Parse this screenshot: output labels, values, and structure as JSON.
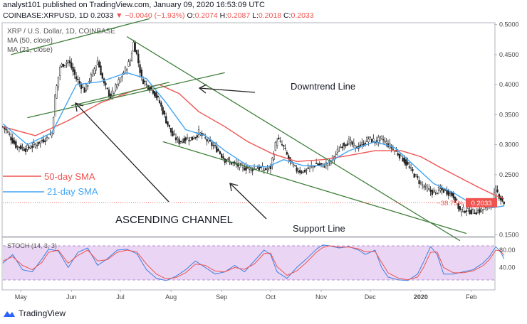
{
  "header": {
    "published_line": "analyst101 published on TradingView.com, January 09, 2020 16:53:09 UTC",
    "symbol": "COINBASE:XRPUSD, 1D",
    "last": "0.2033",
    "change": "▼ −0.0040 (−1.93%)",
    "o_label": "O:",
    "o": "0.2074",
    "h_label": "H:",
    "h": "0.2087",
    "l_label": "L:",
    "l": "0.2018",
    "c_label": "C:",
    "c": "0.2033"
  },
  "colors": {
    "ma50": "#ef5350",
    "ma21": "#42a5f5",
    "trend": "#3f7f3a",
    "candle": "#222222",
    "stoch_k": "#3d7ee0",
    "stoch_d": "#ef5350",
    "stoch_bg": "#e3c9f0",
    "price_tag": "#ef5350"
  },
  "chart_data": {
    "type": "candlestick",
    "legend": {
      "title": "XRP / U.S. Dollar, 1D, COINBASE",
      "ma50": "MA (50, close)",
      "ma21": "MA (21, close)"
    },
    "y_ticks": [
      "0.5000",
      "0.4500",
      "0.4000",
      "0.3500",
      "0.3000",
      "0.2500",
      "0.1500"
    ],
    "x_ticks": [
      "May",
      "Jun",
      "Jul",
      "Aug",
      "Sep",
      "Oct",
      "Nov",
      "Dec",
      "2020",
      "Feb"
    ],
    "current_price": "0.2033",
    "pct_change": "−38.75%",
    "x_range": [
      "2019-04-20",
      "2020-02-15"
    ],
    "y_range": [
      0.148,
      0.502
    ],
    "price_series": [
      [
        0,
        0.33
      ],
      [
        3,
        0.32
      ],
      [
        8,
        0.298
      ],
      [
        14,
        0.293
      ],
      [
        20,
        0.3
      ],
      [
        26,
        0.31
      ],
      [
        30,
        0.32
      ],
      [
        32,
        0.38
      ],
      [
        35,
        0.43
      ],
      [
        40,
        0.44
      ],
      [
        45,
        0.41
      ],
      [
        50,
        0.39
      ],
      [
        55,
        0.42
      ],
      [
        58,
        0.44
      ],
      [
        62,
        0.4
      ],
      [
        66,
        0.38
      ],
      [
        70,
        0.4
      ],
      [
        74,
        0.42
      ],
      [
        78,
        0.44
      ],
      [
        80,
        0.47
      ],
      [
        82,
        0.45
      ],
      [
        85,
        0.41
      ],
      [
        88,
        0.4
      ],
      [
        92,
        0.39
      ],
      [
        96,
        0.37
      ],
      [
        100,
        0.34
      ],
      [
        104,
        0.315
      ],
      [
        108,
        0.305
      ],
      [
        112,
        0.31
      ],
      [
        116,
        0.31
      ],
      [
        120,
        0.32
      ],
      [
        124,
        0.31
      ],
      [
        128,
        0.3
      ],
      [
        132,
        0.29
      ],
      [
        136,
        0.275
      ],
      [
        140,
        0.27
      ],
      [
        144,
        0.265
      ],
      [
        148,
        0.262
      ],
      [
        152,
        0.26
      ],
      [
        156,
        0.262
      ],
      [
        160,
        0.258
      ],
      [
        164,
        0.262
      ],
      [
        166,
        0.29
      ],
      [
        168,
        0.31
      ],
      [
        172,
        0.295
      ],
      [
        176,
        0.27
      ],
      [
        180,
        0.258
      ],
      [
        184,
        0.255
      ],
      [
        188,
        0.262
      ],
      [
        192,
        0.268
      ],
      [
        196,
        0.265
      ],
      [
        200,
        0.27
      ],
      [
        204,
        0.285
      ],
      [
        208,
        0.3
      ],
      [
        212,
        0.305
      ],
      [
        216,
        0.295
      ],
      [
        220,
        0.3
      ],
      [
        224,
        0.31
      ],
      [
        228,
        0.305
      ],
      [
        232,
        0.31
      ],
      [
        236,
        0.3
      ],
      [
        240,
        0.29
      ],
      [
        244,
        0.28
      ],
      [
        248,
        0.265
      ],
      [
        252,
        0.25
      ],
      [
        256,
        0.235
      ],
      [
        260,
        0.225
      ],
      [
        264,
        0.22
      ],
      [
        268,
        0.225
      ],
      [
        272,
        0.222
      ],
      [
        276,
        0.215
      ],
      [
        280,
        0.19
      ],
      [
        284,
        0.192
      ],
      [
        288,
        0.188
      ],
      [
        292,
        0.19
      ],
      [
        296,
        0.195
      ],
      [
        300,
        0.205
      ],
      [
        302,
        0.225
      ],
      [
        305,
        0.21
      ],
      [
        307,
        0.2033
      ]
    ],
    "ma50_series": [
      [
        0,
        0.33
      ],
      [
        20,
        0.315
      ],
      [
        40,
        0.34
      ],
      [
        60,
        0.37
      ],
      [
        80,
        0.39
      ],
      [
        96,
        0.4
      ],
      [
        108,
        0.385
      ],
      [
        120,
        0.355
      ],
      [
        136,
        0.33
      ],
      [
        150,
        0.305
      ],
      [
        165,
        0.285
      ],
      [
        180,
        0.272
      ],
      [
        196,
        0.275
      ],
      [
        212,
        0.282
      ],
      [
        228,
        0.29
      ],
      [
        244,
        0.29
      ],
      [
        256,
        0.28
      ],
      [
        268,
        0.262
      ],
      [
        280,
        0.245
      ],
      [
        292,
        0.228
      ],
      [
        302,
        0.215
      ],
      [
        307,
        0.21
      ]
    ],
    "ma21_series": [
      [
        0,
        0.335
      ],
      [
        15,
        0.3
      ],
      [
        30,
        0.32
      ],
      [
        45,
        0.4
      ],
      [
        60,
        0.405
      ],
      [
        76,
        0.42
      ],
      [
        88,
        0.41
      ],
      [
        100,
        0.37
      ],
      [
        112,
        0.325
      ],
      [
        124,
        0.315
      ],
      [
        136,
        0.29
      ],
      [
        150,
        0.265
      ],
      [
        162,
        0.263
      ],
      [
        172,
        0.275
      ],
      [
        184,
        0.265
      ],
      [
        196,
        0.265
      ],
      [
        212,
        0.29
      ],
      [
        228,
        0.305
      ],
      [
        240,
        0.295
      ],
      [
        252,
        0.265
      ],
      [
        264,
        0.235
      ],
      [
        276,
        0.22
      ],
      [
        288,
        0.2
      ],
      [
        300,
        0.195
      ],
      [
        307,
        0.198
      ]
    ],
    "trend_lines": [
      {
        "name": "channel-upper",
        "x": [
          5,
          90
        ],
        "y": [
          0.45,
          0.51
        ]
      },
      {
        "name": "channel-lower",
        "x": [
          15,
          136
        ],
        "y": [
          0.345,
          0.42
        ]
      },
      {
        "name": "channel-mid",
        "x": [
          42,
          102
        ],
        "y": [
          0.365,
          0.404
        ]
      },
      {
        "name": "downtrend",
        "x": [
          76,
          280
        ],
        "y": [
          0.48,
          0.14
        ]
      },
      {
        "name": "support",
        "x": [
          98,
          284
        ],
        "y": [
          0.305,
          0.152
        ]
      }
    ],
    "annotations": [
      {
        "name": "downtrend-label",
        "text": "Downtrend Line"
      },
      {
        "name": "sma50-label",
        "text": "50-day SMA"
      },
      {
        "name": "sma21-label",
        "text": "21-day SMA"
      },
      {
        "name": "channel-label",
        "text": "ASCENDING CHANNEL"
      },
      {
        "name": "support-label",
        "text": "Support Line"
      }
    ],
    "stoch": {
      "title": "STOCH (14, 3, 3)",
      "y_ticks": [
        "80.00",
        "40.00"
      ],
      "overbought": 80,
      "oversold": 20,
      "k": [
        [
          0,
          50
        ],
        [
          6,
          70
        ],
        [
          12,
          35
        ],
        [
          18,
          30
        ],
        [
          24,
          60
        ],
        [
          28,
          82
        ],
        [
          34,
          78
        ],
        [
          40,
          40
        ],
        [
          46,
          75
        ],
        [
          52,
          85
        ],
        [
          58,
          45
        ],
        [
          64,
          60
        ],
        [
          70,
          80
        ],
        [
          76,
          82
        ],
        [
          82,
          72
        ],
        [
          88,
          35
        ],
        [
          94,
          15
        ],
        [
          100,
          10
        ],
        [
          106,
          20
        ],
        [
          112,
          35
        ],
        [
          118,
          55
        ],
        [
          124,
          40
        ],
        [
          130,
          25
        ],
        [
          136,
          30
        ],
        [
          142,
          45
        ],
        [
          148,
          30
        ],
        [
          154,
          55
        ],
        [
          160,
          80
        ],
        [
          164,
          70
        ],
        [
          168,
          30
        ],
        [
          174,
          15
        ],
        [
          180,
          40
        ],
        [
          186,
          60
        ],
        [
          192,
          82
        ],
        [
          196,
          92
        ],
        [
          200,
          90
        ],
        [
          206,
          85
        ],
        [
          212,
          88
        ],
        [
          218,
          80
        ],
        [
          222,
          70
        ],
        [
          228,
          80
        ],
        [
          232,
          40
        ],
        [
          236,
          18
        ],
        [
          242,
          12
        ],
        [
          248,
          10
        ],
        [
          254,
          25
        ],
        [
          258,
          55
        ],
        [
          262,
          88
        ],
        [
          266,
          70
        ],
        [
          270,
          25
        ],
        [
          276,
          25
        ],
        [
          282,
          30
        ],
        [
          288,
          35
        ],
        [
          294,
          50
        ],
        [
          298,
          65
        ],
        [
          302,
          88
        ],
        [
          305,
          75
        ],
        [
          307,
          60
        ]
      ],
      "d": [
        [
          0,
          55
        ],
        [
          6,
          65
        ],
        [
          12,
          45
        ],
        [
          18,
          35
        ],
        [
          24,
          52
        ],
        [
          28,
          75
        ],
        [
          34,
          80
        ],
        [
          40,
          50
        ],
        [
          46,
          68
        ],
        [
          52,
          80
        ],
        [
          58,
          55
        ],
        [
          64,
          58
        ],
        [
          70,
          75
        ],
        [
          76,
          80
        ],
        [
          82,
          76
        ],
        [
          88,
          48
        ],
        [
          94,
          25
        ],
        [
          100,
          14
        ],
        [
          106,
          17
        ],
        [
          112,
          28
        ],
        [
          118,
          48
        ],
        [
          124,
          45
        ],
        [
          130,
          32
        ],
        [
          136,
          30
        ],
        [
          142,
          40
        ],
        [
          148,
          36
        ],
        [
          154,
          48
        ],
        [
          160,
          72
        ],
        [
          164,
          73
        ],
        [
          168,
          42
        ],
        [
          174,
          22
        ],
        [
          180,
          32
        ],
        [
          186,
          52
        ],
        [
          192,
          75
        ],
        [
          196,
          86
        ],
        [
          200,
          90
        ],
        [
          206,
          87
        ],
        [
          212,
          87
        ],
        [
          218,
          83
        ],
        [
          222,
          76
        ],
        [
          228,
          77
        ],
        [
          232,
          52
        ],
        [
          236,
          28
        ],
        [
          242,
          16
        ],
        [
          248,
          12
        ],
        [
          254,
          18
        ],
        [
          258,
          42
        ],
        [
          262,
          75
        ],
        [
          266,
          76
        ],
        [
          270,
          40
        ],
        [
          276,
          28
        ],
        [
          282,
          28
        ],
        [
          288,
          32
        ],
        [
          294,
          44
        ],
        [
          298,
          58
        ],
        [
          302,
          80
        ],
        [
          305,
          78
        ],
        [
          307,
          68
        ]
      ]
    }
  },
  "footer": {
    "brand": "TradingView"
  }
}
